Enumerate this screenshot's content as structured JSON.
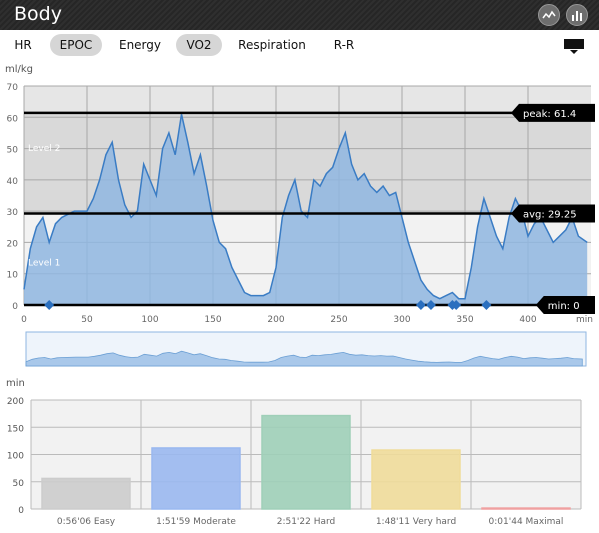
{
  "window": {
    "title": "Body"
  },
  "tabs": [
    {
      "label": "HR",
      "selected": false
    },
    {
      "label": "EPOC",
      "selected": true
    },
    {
      "label": "Energy",
      "selected": false
    },
    {
      "label": "VO2",
      "selected": true
    },
    {
      "label": "Respiration",
      "selected": false
    },
    {
      "label": "R-R",
      "selected": false
    }
  ],
  "icons": {
    "titlebar": [
      "line-chart-icon",
      "bar-chart-icon"
    ],
    "menu": "display-menu-icon"
  },
  "colors": {
    "fill": "#8fb6e0",
    "line": "#3a7cc4",
    "bands": "#d9d9d9",
    "marker": "#2a6fbf"
  },
  "chart_data": [
    {
      "type": "area",
      "ylabel": "ml/kg",
      "xlabel": "min",
      "xlim": [
        0,
        450
      ],
      "ylim": [
        0,
        70
      ],
      "xticks": [
        0,
        50,
        100,
        150,
        200,
        250,
        300,
        350,
        400
      ],
      "yticks": [
        0,
        10,
        20,
        30,
        40,
        50,
        60,
        70
      ],
      "grid": true,
      "zones": [
        {
          "label": "Level 1",
          "from": 0,
          "to": 29.25
        },
        {
          "label": "Level 2",
          "from": 29.25,
          "to": 61.4
        }
      ],
      "reference_lines": [
        {
          "label": "peak: 61.4",
          "value": 61.4
        },
        {
          "label": "avg: 29.25",
          "value": 29.25
        },
        {
          "label": "min: 0",
          "value": 0
        }
      ],
      "markers_x": [
        20,
        315,
        323,
        340,
        343,
        367
      ],
      "series": [
        {
          "x": [
            0,
            5,
            10,
            15,
            20,
            25,
            30,
            40,
            50,
            55,
            60,
            65,
            70,
            75,
            80,
            85,
            90,
            95,
            100,
            105,
            110,
            115,
            120,
            125,
            130,
            135,
            140,
            145,
            150,
            155,
            160,
            165,
            170,
            175,
            180,
            185,
            190,
            195,
            200,
            205,
            210,
            215,
            220,
            225,
            230,
            235,
            240,
            245,
            250,
            255,
            260,
            265,
            270,
            275,
            280,
            285,
            290,
            295,
            300,
            305,
            310,
            315,
            320,
            325,
            330,
            335,
            340,
            345,
            350,
            355,
            360,
            365,
            370,
            375,
            380,
            385,
            390,
            395,
            400,
            405,
            410,
            415,
            420,
            425,
            430,
            435,
            440,
            447
          ],
          "values": [
            5,
            18,
            25,
            28,
            20,
            26,
            28,
            30,
            30,
            34,
            40,
            48,
            52,
            40,
            32,
            28,
            30,
            45,
            40,
            35,
            50,
            55,
            48,
            61,
            52,
            42,
            48,
            38,
            27,
            20,
            18,
            12,
            8,
            4,
            3,
            3,
            3,
            4,
            12,
            28,
            35,
            40,
            30,
            28,
            40,
            38,
            42,
            44,
            50,
            55,
            45,
            40,
            42,
            38,
            36,
            38,
            35,
            36,
            28,
            20,
            14,
            8,
            5,
            3,
            2,
            3,
            4,
            2,
            2,
            12,
            25,
            34,
            28,
            22,
            18,
            28,
            34,
            30,
            22,
            26,
            28,
            24,
            20,
            22,
            24,
            28,
            22,
            20
          ]
        }
      ]
    },
    {
      "type": "bar",
      "ylabel": "min",
      "ylim": [
        0,
        200
      ],
      "yticks": [
        0,
        50,
        100,
        150,
        200
      ],
      "categories": [
        "0:56'06 Easy",
        "1:51'59 Moderate",
        "2:51'22 Hard",
        "1:48'11 Very hard",
        "0:01'44 Maximal"
      ],
      "values": [
        56.1,
        112.0,
        171.4,
        108.2,
        1.7
      ],
      "colors": [
        "#cccccc",
        "#9ab8f0",
        "#9fcfb8",
        "#f0dc9a",
        "#f0a0a0"
      ],
      "grid": true
    }
  ]
}
